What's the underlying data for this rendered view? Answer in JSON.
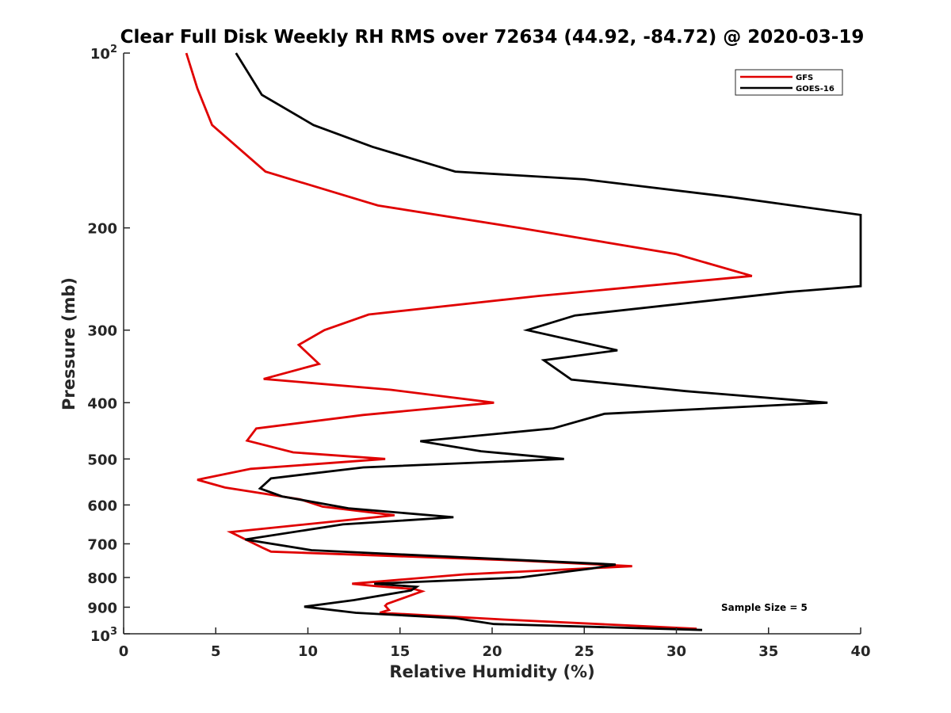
{
  "chart_data": {
    "type": "line",
    "title": "Clear Full Disk Weekly RH RMS over 72634 (44.92, -84.72) @ 2020-03-19",
    "xlabel": "Relative Humidity (%)",
    "ylabel": "Pressure (mb)",
    "xlim": [
      0,
      40
    ],
    "ylim": [
      100,
      1000
    ],
    "yscale": "log",
    "y_reversed": true,
    "x_ticks": [
      0,
      5,
      10,
      15,
      20,
      25,
      30,
      35,
      40
    ],
    "x_tick_labels": [
      "0",
      "5",
      "10",
      "15",
      "20",
      "25",
      "30",
      "35",
      "40"
    ],
    "y_ticks": [
      200,
      300,
      400,
      500,
      600,
      700,
      800,
      900
    ],
    "y_tick_labels": [
      "200",
      "300",
      "400",
      "500",
      "600",
      "700",
      "800",
      "900"
    ],
    "y_tick_top": {
      "base": "10",
      "exp": "2"
    },
    "y_tick_bottom": {
      "base": "10",
      "exp": "3"
    },
    "legend_position": "top-right",
    "annotation": "Sample Size = 5",
    "series": [
      {
        "name": "GFS",
        "color": "#e00000",
        "points": [
          [
            3.4,
            100
          ],
          [
            4.0,
            115
          ],
          [
            4.8,
            133
          ],
          [
            7.7,
            160
          ],
          [
            13.8,
            183
          ],
          [
            21.5,
            200
          ],
          [
            30.0,
            222
          ],
          [
            34.1,
            242
          ],
          [
            22.5,
            262
          ],
          [
            13.3,
            282
          ],
          [
            10.9,
            300
          ],
          [
            9.5,
            318
          ],
          [
            10.6,
            343
          ],
          [
            7.6,
            364
          ],
          [
            14.5,
            380
          ],
          [
            20.1,
            400
          ],
          [
            13.0,
            420
          ],
          [
            7.2,
            443
          ],
          [
            6.7,
            465
          ],
          [
            9.2,
            487
          ],
          [
            14.2,
            500
          ],
          [
            6.9,
            520
          ],
          [
            4.0,
            543
          ],
          [
            5.5,
            560
          ],
          [
            9.6,
            587
          ],
          [
            10.8,
            604
          ],
          [
            14.7,
            625
          ],
          [
            5.8,
            668
          ],
          [
            7.5,
            710
          ],
          [
            8.0,
            722
          ],
          [
            21.5,
            748
          ],
          [
            27.6,
            765
          ],
          [
            18.5,
            790
          ],
          [
            12.4,
            820
          ],
          [
            13.7,
            828
          ],
          [
            15.8,
            838
          ],
          [
            16.2,
            845
          ],
          [
            14.3,
            888
          ],
          [
            14.2,
            895
          ],
          [
            14.4,
            910
          ],
          [
            13.9,
            920
          ],
          [
            20.6,
            945
          ],
          [
            31.1,
            980
          ]
        ]
      },
      {
        "name": "GOES-16",
        "color": "#000000",
        "points": [
          [
            6.1,
            100
          ],
          [
            7.5,
            118
          ],
          [
            10.3,
            133
          ],
          [
            13.5,
            145
          ],
          [
            18.0,
            160
          ],
          [
            25.0,
            165
          ],
          [
            33.0,
            177
          ],
          [
            40.0,
            190
          ],
          [
            40.0,
            252
          ],
          [
            36.0,
            258
          ],
          [
            24.5,
            283
          ],
          [
            21.9,
            300
          ],
          [
            26.8,
            325
          ],
          [
            22.8,
            338
          ],
          [
            24.3,
            365
          ],
          [
            30.5,
            382
          ],
          [
            38.2,
            400
          ],
          [
            26.1,
            418
          ],
          [
            23.3,
            443
          ],
          [
            16.1,
            466
          ],
          [
            19.4,
            485
          ],
          [
            23.9,
            500
          ],
          [
            13.0,
            517
          ],
          [
            8.0,
            540
          ],
          [
            7.4,
            562
          ],
          [
            8.6,
            580
          ],
          [
            12.2,
            608
          ],
          [
            17.9,
            630
          ],
          [
            11.9,
            648
          ],
          [
            6.6,
            688
          ],
          [
            10.2,
            718
          ],
          [
            26.7,
            760
          ],
          [
            25.4,
            772
          ],
          [
            21.5,
            800
          ],
          [
            13.6,
            820
          ],
          [
            15.9,
            830
          ],
          [
            15.6,
            842
          ],
          [
            12.5,
            875
          ],
          [
            9.8,
            898
          ],
          [
            12.6,
            920
          ],
          [
            18.0,
            940
          ],
          [
            20.1,
            962
          ],
          [
            31.4,
            985
          ]
        ]
      }
    ]
  }
}
